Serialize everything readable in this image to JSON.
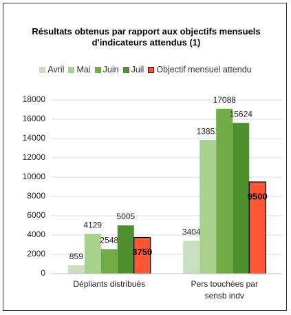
{
  "chart_data": {
    "type": "bar",
    "title": "Résultats obtenus par rapport aux objectifs mensuels d'indicateurs attendus (1)",
    "categories": [
      "Dépliants distribués",
      "Pers touchées par sensb indv"
    ],
    "series": [
      {
        "name": "Avril",
        "color": "#c9dfc0",
        "values": [
          859,
          3404
        ]
      },
      {
        "name": "Mai",
        "color": "#a9d18e",
        "values": [
          4129,
          13851
        ]
      },
      {
        "name": "Juin",
        "color": "#70ad47",
        "values": [
          2548,
          17088
        ]
      },
      {
        "name": "Juil",
        "color": "#4e8f2e",
        "values": [
          5005,
          15624
        ]
      },
      {
        "name": "Objectif mensuel attendu",
        "color": "#ff5733",
        "values": [
          3750,
          9500
        ]
      }
    ],
    "ylim": [
      0,
      18000
    ],
    "yticks": [
      0,
      2000,
      4000,
      6000,
      8000,
      10000,
      12000,
      14000,
      16000,
      18000
    ],
    "grid": true
  }
}
